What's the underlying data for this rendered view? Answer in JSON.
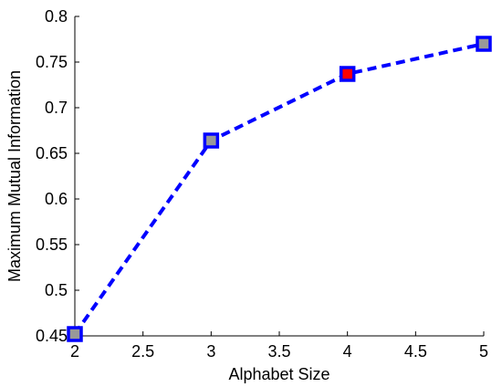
{
  "chart_data": {
    "type": "line",
    "title": "",
    "xlabel": "Alphabet Size",
    "ylabel": "Maximum Mutual Information",
    "xlim": [
      2,
      5
    ],
    "ylim": [
      0.45,
      0.8
    ],
    "xticks": [
      2,
      2.5,
      3,
      3.5,
      4,
      4.5,
      5
    ],
    "xtick_labels": [
      "2",
      "2.5",
      "3",
      "3.5",
      "4",
      "4.5",
      "5"
    ],
    "yticks": [
      0.45,
      0.5,
      0.55,
      0.6,
      0.65,
      0.7,
      0.75,
      0.8
    ],
    "ytick_labels": [
      "0.45",
      "0.5",
      "0.55",
      "0.6",
      "0.65",
      "0.7",
      "0.75",
      "0.8"
    ],
    "grid": false,
    "legend": "none",
    "series": [
      {
        "x": [
          2,
          3,
          4,
          5
        ],
        "y": [
          0.452,
          0.664,
          0.737,
          0.77
        ],
        "line_color": "#0000ff",
        "line_style": "dashed",
        "marker": "square",
        "marker_edge_color": "#0000ff",
        "marker_face_colors": [
          "#999999",
          "#999999",
          "#ff0000",
          "#999999"
        ]
      }
    ]
  }
}
